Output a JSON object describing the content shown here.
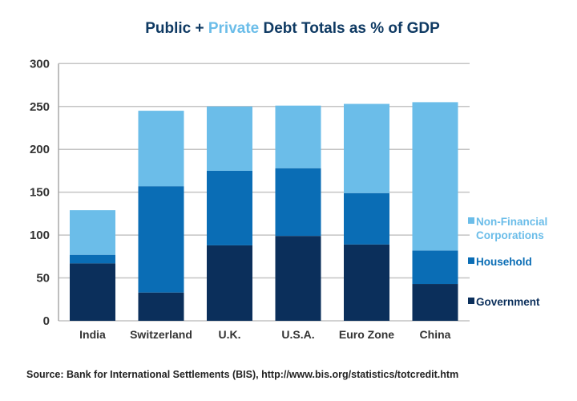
{
  "chart_data": {
    "type": "bar",
    "stacked": true,
    "title_parts": [
      {
        "text": "Public + ",
        "color": "#0f3a63"
      },
      {
        "text": "Private",
        "color": "#6bbde9"
      },
      {
        "text": " Debt Totals as % of GDP",
        "color": "#0f3a63"
      }
    ],
    "title": "Public + Private Debt Totals as % of GDP",
    "xlabel": "",
    "ylabel": "",
    "ylim": [
      0,
      300
    ],
    "yticks": [
      0,
      50,
      100,
      150,
      200,
      250,
      300
    ],
    "grid": true,
    "categories": [
      "India",
      "Switzerland",
      "U.K.",
      "U.S.A.",
      "Euro Zone",
      "China"
    ],
    "series": [
      {
        "name": "Government",
        "color": "#0b2f5b",
        "values": [
          67,
          33,
          88,
          99,
          89,
          43
        ]
      },
      {
        "name": "Household",
        "color": "#0a6db5",
        "values": [
          10,
          124,
          87,
          79,
          60,
          39
        ]
      },
      {
        "name": "Non-Financial Corporations",
        "color": "#6bbde9",
        "values": [
          52,
          88,
          75,
          73,
          104,
          173
        ]
      }
    ],
    "legend": {
      "position": "right",
      "entries": [
        {
          "label_lines": [
            "Non-Financial",
            "Corporations"
          ],
          "color": "#6bbde9"
        },
        {
          "label_lines": [
            "Household"
          ],
          "color": "#0a6db5"
        },
        {
          "label_lines": [
            "Government"
          ],
          "color": "#0b2f5b"
        }
      ]
    },
    "source": "Source: Bank for International Settlements (BIS), http://www.bis.org/statistics/totcredit.htm"
  },
  "colors": {
    "gridline": "#c4c4c4",
    "axis": "#a8a8a8",
    "tick_text": "#333333"
  }
}
